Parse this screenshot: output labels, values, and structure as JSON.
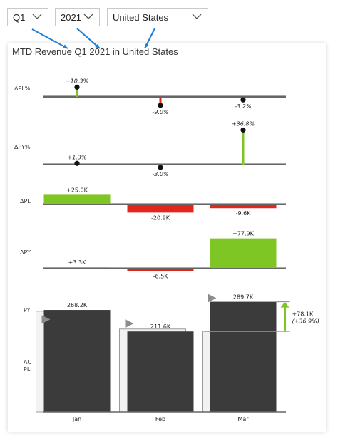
{
  "filters": {
    "quarter": {
      "value": "Q1"
    },
    "year": {
      "value": "2021"
    },
    "country": {
      "value": "United States"
    }
  },
  "card": {
    "title": "MTD Revenue Q1 2021 in United States"
  },
  "colors": {
    "positive": "#7dc623",
    "negative": "#e3261c",
    "actual": "#3b3b3b",
    "previous": "#f2f2f2",
    "plan_marker": "#8c8c8c",
    "axis": "#666666",
    "annotation_arrow": "#1f7fd6"
  },
  "icons": {
    "dropdown": "chevron-down-icon",
    "annotation": "blue-arrow"
  },
  "chart_data": {
    "type": "bar",
    "title": "MTD Revenue Q1 2021 in United States",
    "categories": [
      "Jan",
      "Feb",
      "Mar"
    ],
    "series": [
      {
        "name": "AC",
        "values": [
          268.2,
          211.6,
          289.7
        ]
      },
      {
        "name": "PY",
        "values": [
          264.9,
          218.1,
          211.8
        ]
      },
      {
        "name": "PL",
        "values": [
          243.2,
          232.5,
          299.3
        ]
      }
    ],
    "value_labels": [
      "268.2K",
      "211.6K",
      "289.7K"
    ],
    "row_labels": {
      "dpl_pct": "ΔPL%",
      "dpy_pct": "ΔPY%",
      "dpl": "ΔPL",
      "dpy": "ΔPY",
      "py": "PY",
      "ac": "AC",
      "pl": "PL"
    },
    "delta_pl_pct": {
      "values": [
        10.3,
        -9.0,
        -3.2
      ],
      "labels": [
        "+10.3%",
        "-9.0%",
        "-3.2%"
      ]
    },
    "delta_py_pct": {
      "values": [
        1.3,
        -3.0,
        36.8
      ],
      "labels": [
        "+1.3%",
        "-3.0%",
        "+36.8%"
      ]
    },
    "delta_pl": {
      "values": [
        25.0,
        -20.9,
        -9.6
      ],
      "labels": [
        "+25.0K",
        "-20.9K",
        "-9.6K"
      ]
    },
    "delta_py": {
      "values": [
        3.3,
        -6.5,
        77.9
      ],
      "labels": [
        "+3.3K",
        "-6.5K",
        "+77.9K"
      ]
    },
    "total_delta": {
      "value": 78.1,
      "percent": 36.9,
      "label": "+78.1K",
      "percent_label": "(+36.9%)"
    }
  }
}
